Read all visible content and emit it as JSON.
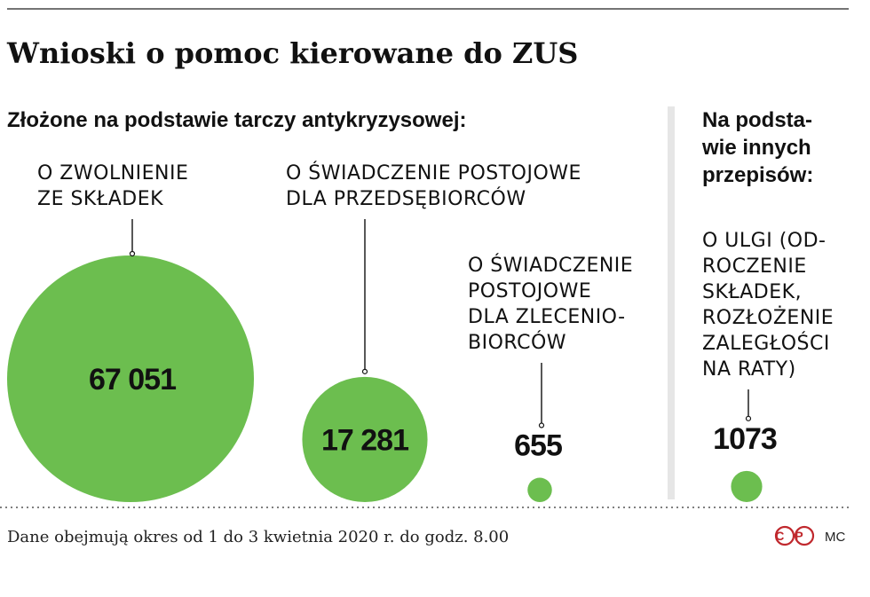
{
  "chart_data": {
    "type": "bubble",
    "title": "Wnioski o pomoc kierowane do ZUS",
    "groups": [
      {
        "heading": "Złożone na podstawie tarczy antykryzysowej:",
        "items": [
          0,
          1,
          2
        ]
      },
      {
        "heading": [
          "Na podsta-",
          "wie innych",
          "przepisów:"
        ],
        "items": [
          3
        ]
      }
    ],
    "items": [
      {
        "label": [
          "O ZWOLNIENIE",
          "ZE SKŁADEK"
        ],
        "value": 67051,
        "value_label": "67 051"
      },
      {
        "label": [
          "O ŚWIADCZENIE POSTOJOWE",
          "DLA PRZEDSĘBIORCÓW"
        ],
        "value": 17281,
        "value_label": "17 281"
      },
      {
        "label": [
          "O ŚWIADCZENIE",
          "POSTOJOWE",
          "DLA ZLECENIO-",
          "BIORCÓW"
        ],
        "value": 655,
        "value_label": "655"
      },
      {
        "label": [
          "O ULGI (OD-",
          "ROCZENIE",
          "SKŁADEK,",
          "ROZŁOŻENIE",
          "ZALEGŁOŚCI",
          "NA RATY)"
        ],
        "value": 1073,
        "value_label": "1073"
      }
    ],
    "bubble_color": "#6cbe4f"
  },
  "footer": {
    "note": "Dane obejmują okres od 1 do 3 kwietnia 2020 r. do godz. 8.00",
    "credit": "MC",
    "logo_text": "CP"
  }
}
